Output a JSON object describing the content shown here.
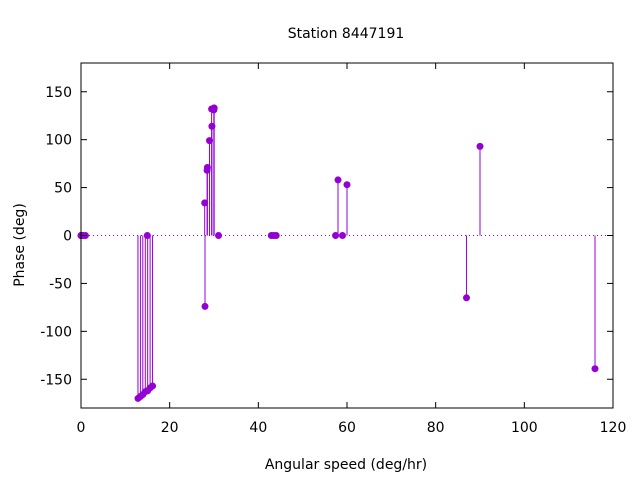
{
  "chart_data": {
    "type": "scatter",
    "style": "impulses-with-points",
    "title": "Station 8447191",
    "xlabel": "Angular speed (deg/hr)",
    "ylabel": "Phase (deg)",
    "xlim": [
      0,
      120
    ],
    "ylim": [
      -180,
      180
    ],
    "xticks": [
      0,
      20,
      40,
      60,
      80,
      100,
      120
    ],
    "yticks": [
      -150,
      -100,
      -50,
      0,
      50,
      100,
      150
    ],
    "zero_line": "dotted",
    "grid": false,
    "legend": "none",
    "color": "#9400D3",
    "points": [
      {
        "x": 0.0,
        "y": 0
      },
      {
        "x": 0.04,
        "y": 0
      },
      {
        "x": 0.08,
        "y": 0
      },
      {
        "x": 0.5,
        "y": 0
      },
      {
        "x": 1.0,
        "y": 0
      },
      {
        "x": 12.85,
        "y": -170
      },
      {
        "x": 13.4,
        "y": -168
      },
      {
        "x": 13.94,
        "y": -166
      },
      {
        "x": 14.5,
        "y": -163
      },
      {
        "x": 14.96,
        "y": 0
      },
      {
        "x": 15.04,
        "y": -162
      },
      {
        "x": 15.59,
        "y": -159
      },
      {
        "x": 16.14,
        "y": -157
      },
      {
        "x": 27.9,
        "y": 34
      },
      {
        "x": 27.97,
        "y": -74
      },
      {
        "x": 28.44,
        "y": 68
      },
      {
        "x": 28.51,
        "y": 71
      },
      {
        "x": 28.99,
        "y": 99
      },
      {
        "x": 29.46,
        "y": 132
      },
      {
        "x": 29.53,
        "y": 114
      },
      {
        "x": 29.96,
        "y": 131
      },
      {
        "x": 30.0,
        "y": 133
      },
      {
        "x": 30.04,
        "y": 133
      },
      {
        "x": 31.02,
        "y": 0
      },
      {
        "x": 42.93,
        "y": 0
      },
      {
        "x": 43.48,
        "y": 0
      },
      {
        "x": 44.03,
        "y": 0
      },
      {
        "x": 57.42,
        "y": 0
      },
      {
        "x": 57.97,
        "y": 58
      },
      {
        "x": 58.98,
        "y": 0
      },
      {
        "x": 60.0,
        "y": 53
      },
      {
        "x": 86.95,
        "y": -65
      },
      {
        "x": 90.0,
        "y": 93
      },
      {
        "x": 115.94,
        "y": -139
      }
    ]
  }
}
